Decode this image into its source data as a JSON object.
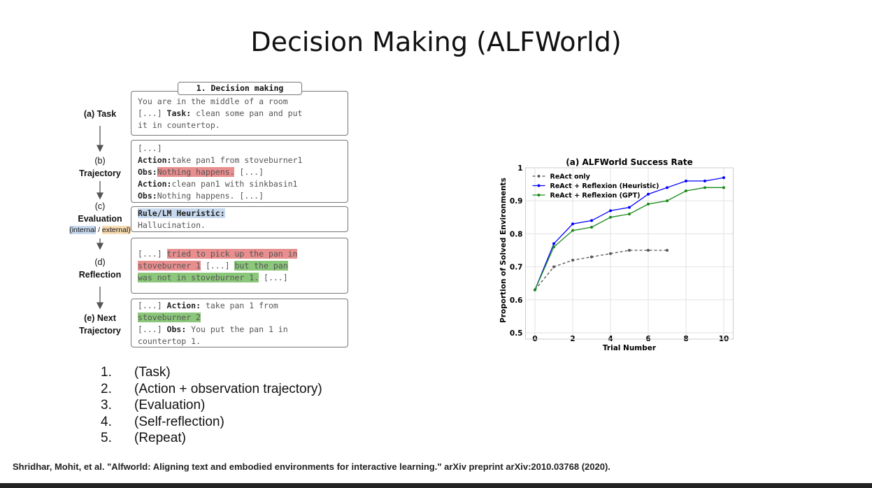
{
  "title": "Decision Making (ALFWorld)",
  "diagram": {
    "header": "1. Decision making",
    "steps": [
      {
        "lines": [
          "(a) Task"
        ]
      },
      {
        "lines": [
          "(b)",
          "Trajectory"
        ]
      },
      {
        "lines": [
          "(c)",
          "Evaluation"
        ],
        "note": [
          "(internal",
          " / ",
          "external)"
        ]
      },
      {
        "lines": [
          "(d)",
          "Reflection"
        ]
      },
      {
        "lines": [
          "(e) Next",
          "Trajectory"
        ]
      }
    ],
    "boxes": [
      [
        [
          "You are in the middle of a room"
        ],
        [
          "[...] ",
          "Task:",
          " clean some pan and put"
        ],
        [
          "it in countertop."
        ]
      ],
      [
        [
          "[...]"
        ],
        [
          "Action:",
          "take pan1 from stoveburner1"
        ],
        [
          "Obs:",
          "Nothing happens.",
          " [...]"
        ],
        [
          "Action:",
          "clean pan1 with sinkbasin1"
        ],
        [
          "Obs:",
          "Nothing happens. [...]"
        ]
      ],
      [
        [
          "Rule/LM Heuristic:"
        ],
        [
          "Hallucination."
        ]
      ],
      [
        [
          "[...] ",
          "tried to pick up the pan in"
        ],
        [
          "stoveburner 1",
          " [...] ",
          "but the pan"
        ],
        [
          "was not in stoveburner 1.",
          " [...]"
        ]
      ],
      [
        [
          "[...] ",
          "Action:",
          " take pan 1 from"
        ],
        [
          "stoveburner 2"
        ],
        [
          "[...] ",
          "Obs:",
          " You put the pan 1 in"
        ],
        [
          "countertop 1."
        ]
      ]
    ]
  },
  "chart_data": {
    "type": "line",
    "title": "(a) ALFWorld Success Rate",
    "xlabel": "Trial Number",
    "ylabel": "Proportion of Solved Environments",
    "x": [
      0,
      1,
      2,
      3,
      4,
      5,
      6,
      7,
      8,
      9,
      10
    ],
    "series": [
      {
        "name": "ReAct only",
        "color": "#555555",
        "dashed": true,
        "values": [
          0.63,
          0.7,
          0.72,
          0.73,
          0.74,
          0.75,
          0.75,
          0.75,
          null,
          null,
          null
        ]
      },
      {
        "name": "ReAct + Reflexion (Heuristic)",
        "color": "#0000ff",
        "values": [
          0.63,
          0.77,
          0.83,
          0.84,
          0.87,
          0.88,
          0.92,
          0.94,
          0.96,
          0.96,
          0.97
        ]
      },
      {
        "name": "ReAct + Reflexion (GPT)",
        "color": "#1a8a1a",
        "values": [
          0.63,
          0.76,
          0.81,
          0.82,
          0.85,
          0.86,
          0.89,
          0.9,
          0.93,
          0.94,
          0.94
        ]
      }
    ],
    "xlim": [
      -0.5,
      10.5
    ],
    "ylim": [
      0.5,
      1.0
    ],
    "xticks": [
      0,
      2,
      4,
      6,
      8,
      10
    ],
    "yticks": [
      0.5,
      0.6,
      0.7,
      0.8,
      0.9,
      1.0
    ],
    "grid": true,
    "legend": "upper left"
  },
  "list": [
    {
      "marker": "1.",
      "text": "(Task)"
    },
    {
      "marker": "2.",
      "text": "(Action + observation trajectory)"
    },
    {
      "marker": "3.",
      "text": "(Evaluation)"
    },
    {
      "marker": "4.",
      "text": "(Self-reflection)"
    },
    {
      "marker": "5.",
      "text": "(Repeat)"
    }
  ],
  "citation": "Shridhar, Mohit, et al. \"Alfworld: Aligning text and embodied environments for interactive learning.\" arXiv preprint arXiv:2010.03768 (2020)."
}
